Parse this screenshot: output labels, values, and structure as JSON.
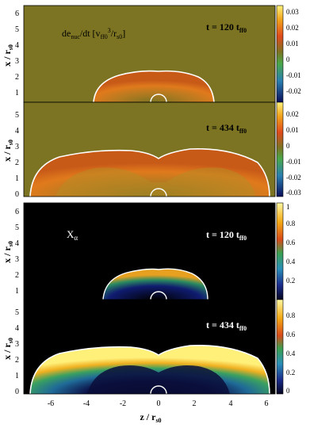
{
  "figure": {
    "xlabel": "z / r",
    "xlabel_sub": "s0",
    "xticks": [
      "-6",
      "-4",
      "-2",
      "0",
      "2",
      "4",
      "6"
    ],
    "panels": [
      {
        "id": "p1",
        "ylabel": "x / r",
        "ylabel_sub": "s0",
        "yticks": [
          "1",
          "2",
          "3",
          "4",
          "5",
          "6"
        ],
        "quantity_label": {
          "main": "de",
          "sub1": "nuc",
          "mid": "/dt [v",
          "sub2": "ff0",
          "sup": "3",
          "end": "/r",
          "sub3": "s0",
          "close": "]"
        },
        "time_label": {
          "main": "t = 120 t",
          "sub": "ff0"
        },
        "colorbar_ticks": [
          "0.03",
          "0.02",
          "0.01",
          "0",
          "-0.01",
          "-0.02"
        ]
      },
      {
        "id": "p2",
        "ylabel": "x / r",
        "ylabel_sub": "s0",
        "yticks": [
          "0",
          "1",
          "2",
          "3",
          "4",
          "5"
        ],
        "time_label": {
          "main": "t = 434 t",
          "sub": "ff0"
        },
        "colorbar_ticks": [
          "0.02",
          "0.01",
          "0",
          "-0.01",
          "-0.02",
          "-0.03"
        ]
      },
      {
        "id": "p3",
        "ylabel": "x / r",
        "ylabel_sub": "s0",
        "yticks": [
          "1",
          "2",
          "3",
          "4",
          "5",
          "6"
        ],
        "quantity_label": {
          "main": "X",
          "sub": "α"
        },
        "time_label": {
          "main": "t = 120 t",
          "sub": "ff0"
        },
        "colorbar_ticks": [
          "1",
          "0.8",
          "0.6",
          "0.4",
          "0.2"
        ]
      },
      {
        "id": "p4",
        "ylabel": "x / r",
        "ylabel_sub": "s0",
        "yticks": [
          "0",
          "1",
          "2",
          "3",
          "4",
          "5"
        ],
        "time_label": {
          "main": "t = 434 t",
          "sub": "ff0"
        },
        "colorbar_ticks": [
          "0.8",
          "0.6",
          "0.4",
          "0.2",
          "0"
        ]
      }
    ],
    "colors": {
      "olive_background": "#7c7422",
      "black_background": "#000000",
      "shock_outline": "#ffffff"
    }
  }
}
